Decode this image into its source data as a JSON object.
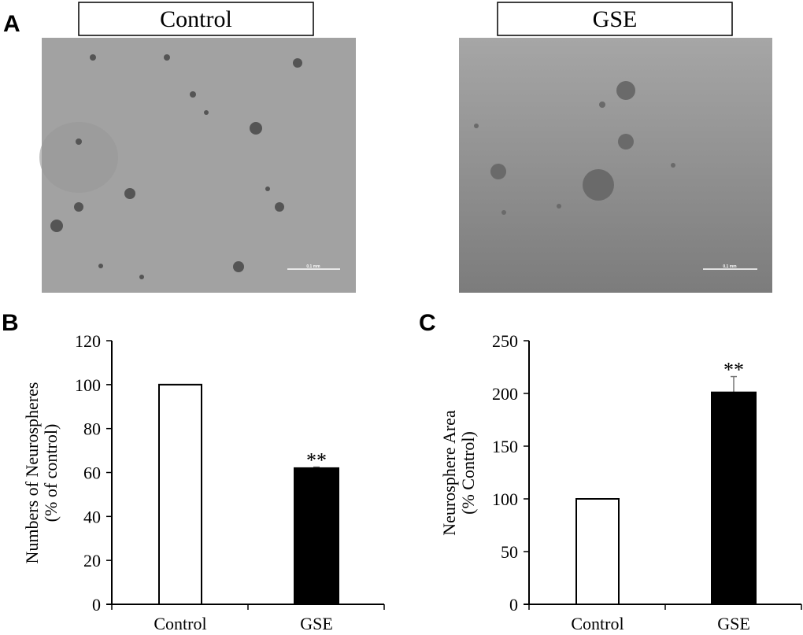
{
  "panel_a": {
    "letter": "A",
    "images": [
      {
        "label": "Control",
        "scale_bar": "0.1 mm"
      },
      {
        "label": "GSE",
        "scale_bar": "0.1 mm"
      }
    ]
  },
  "chart_data": [
    {
      "panel": "B",
      "type": "bar",
      "categories": [
        "Control",
        "GSE"
      ],
      "values": [
        100,
        62
      ],
      "errors": [
        0,
        0.5
      ],
      "significance": [
        "",
        "**"
      ],
      "ylabel_lines": [
        "Numbers of Neurospheres",
        "(% of control)"
      ],
      "ylim": [
        0,
        120
      ],
      "yticks": [
        0,
        20,
        40,
        60,
        80,
        100,
        120
      ],
      "bar_colors": [
        "#ffffff",
        "#000000"
      ],
      "grid": false
    },
    {
      "panel": "C",
      "type": "bar",
      "categories": [
        "Control",
        "GSE"
      ],
      "values": [
        100,
        201
      ],
      "errors": [
        0,
        15
      ],
      "significance": [
        "",
        "**"
      ],
      "ylabel_lines": [
        "Neurosphere Area",
        "(% Control)"
      ],
      "ylim": [
        0,
        250
      ],
      "yticks": [
        0,
        50,
        100,
        150,
        200,
        250
      ],
      "bar_colors": [
        "#ffffff",
        "#000000"
      ],
      "grid": false
    }
  ]
}
